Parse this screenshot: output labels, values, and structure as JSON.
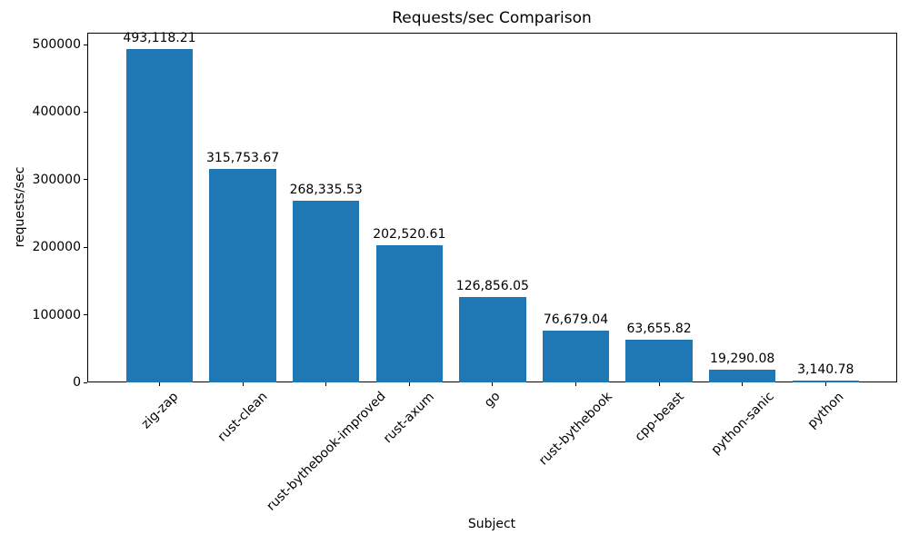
{
  "chart_data": {
    "type": "bar",
    "title": "Requests/sec Comparison",
    "xlabel": "Subject",
    "ylabel": "requests/sec",
    "categories": [
      "zig-zap",
      "rust-clean",
      "rust-bythebook-improved",
      "rust-axum",
      "go",
      "rust-bythebook",
      "cpp-beast",
      "python-sanic",
      "python"
    ],
    "values": [
      493118.21,
      315753.67,
      268335.53,
      202520.61,
      126856.05,
      76679.04,
      63655.82,
      19290.08,
      3140.78
    ],
    "value_labels": [
      "493,118.21",
      "315,753.67",
      "268,335.53",
      "202,520.61",
      "126,856.05",
      "76,679.04",
      "63,655.82",
      "19,290.08",
      "3,140.78"
    ],
    "yticks": [
      0,
      100000,
      200000,
      300000,
      400000,
      500000
    ],
    "ylim": [
      0,
      517500
    ],
    "bar_color": "#1f77b4",
    "x_tick_rotation_deg": 45,
    "grid": false,
    "legend": "none"
  }
}
